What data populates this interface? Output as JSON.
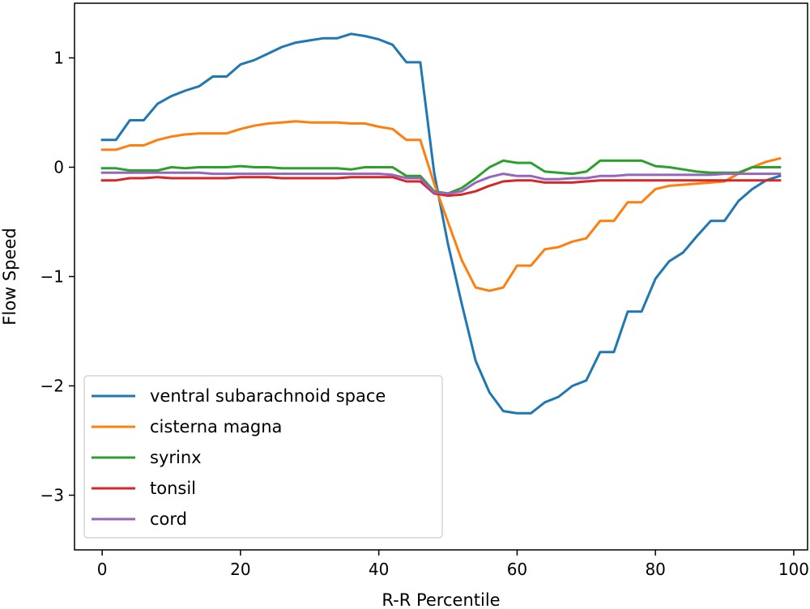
{
  "chart_data": {
    "type": "line",
    "title": "",
    "xlabel": "R-R Percentile",
    "ylabel": "Flow Speed",
    "xlim": [
      -4,
      102
    ],
    "ylim": [
      -3.5,
      1.5
    ],
    "xticks": [
      0,
      20,
      40,
      60,
      80,
      100
    ],
    "yticks": [
      1,
      0,
      -1,
      -2,
      -3
    ],
    "xtick_labels": [
      "0",
      "20",
      "40",
      "60",
      "80",
      "100"
    ],
    "ytick_labels": [
      "1",
      "0",
      "−1",
      "−2",
      "−3"
    ],
    "grid": false,
    "legend_position": "lower-left",
    "x": [
      0,
      2,
      4,
      6,
      8,
      10,
      12,
      14,
      16,
      18,
      20,
      22,
      24,
      26,
      28,
      30,
      32,
      34,
      36,
      38,
      40,
      42,
      44,
      46,
      48,
      50,
      52,
      54,
      56,
      58,
      60,
      62,
      64,
      66,
      68,
      70,
      72,
      74,
      76,
      78,
      80,
      82,
      84,
      86,
      88,
      90,
      92,
      94,
      96,
      98
    ],
    "series": [
      {
        "name": "ventral subarachnoid space",
        "color": "#1f77b4",
        "values": [
          0.25,
          0.25,
          0.43,
          0.43,
          0.58,
          0.65,
          0.7,
          0.74,
          0.83,
          0.83,
          0.94,
          0.98,
          1.04,
          1.1,
          1.14,
          1.16,
          1.18,
          1.18,
          1.22,
          1.2,
          1.17,
          1.12,
          0.96,
          0.96,
          -0.05,
          -0.7,
          -1.25,
          -1.77,
          -2.06,
          -2.23,
          -2.25,
          -2.25,
          -2.15,
          -2.1,
          -2.0,
          -1.95,
          -1.69,
          -1.69,
          -1.32,
          -1.32,
          -1.02,
          -0.86,
          -0.78,
          -0.63,
          -0.49,
          -0.49,
          -0.31,
          -0.2,
          -0.12,
          -0.08
        ]
      },
      {
        "name": "cisterna magna",
        "color": "#ff7f0e",
        "values": [
          0.16,
          0.16,
          0.2,
          0.2,
          0.25,
          0.28,
          0.3,
          0.31,
          0.31,
          0.31,
          0.35,
          0.38,
          0.4,
          0.41,
          0.42,
          0.41,
          0.41,
          0.41,
          0.4,
          0.4,
          0.37,
          0.35,
          0.25,
          0.25,
          -0.15,
          -0.5,
          -0.85,
          -1.1,
          -1.13,
          -1.1,
          -0.9,
          -0.9,
          -0.75,
          -0.73,
          -0.68,
          -0.65,
          -0.49,
          -0.49,
          -0.32,
          -0.32,
          -0.2,
          -0.17,
          -0.16,
          -0.15,
          -0.14,
          -0.13,
          -0.06,
          0.0,
          0.05,
          0.08
        ]
      },
      {
        "name": "syrinx",
        "color": "#2ca02c",
        "values": [
          -0.01,
          -0.01,
          -0.03,
          -0.03,
          -0.03,
          0.0,
          -0.01,
          0.0,
          0.0,
          0.0,
          0.01,
          0.0,
          0.0,
          -0.01,
          -0.01,
          -0.01,
          -0.01,
          -0.01,
          -0.02,
          0.0,
          0.0,
          0.0,
          -0.08,
          -0.08,
          -0.22,
          -0.24,
          -0.19,
          -0.1,
          0.0,
          0.06,
          0.04,
          0.04,
          -0.04,
          -0.05,
          -0.06,
          -0.04,
          0.06,
          0.06,
          0.06,
          0.06,
          0.01,
          0.0,
          -0.02,
          -0.04,
          -0.05,
          -0.05,
          -0.05,
          0.0,
          0.0,
          0.0
        ]
      },
      {
        "name": "tonsil",
        "color": "#d62728",
        "values": [
          -0.12,
          -0.12,
          -0.1,
          -0.1,
          -0.09,
          -0.1,
          -0.1,
          -0.1,
          -0.1,
          -0.1,
          -0.09,
          -0.09,
          -0.09,
          -0.1,
          -0.1,
          -0.1,
          -0.1,
          -0.1,
          -0.09,
          -0.09,
          -0.09,
          -0.09,
          -0.13,
          -0.13,
          -0.24,
          -0.26,
          -0.25,
          -0.22,
          -0.17,
          -0.13,
          -0.12,
          -0.12,
          -0.14,
          -0.14,
          -0.14,
          -0.13,
          -0.12,
          -0.12,
          -0.12,
          -0.12,
          -0.12,
          -0.12,
          -0.12,
          -0.12,
          -0.12,
          -0.12,
          -0.12,
          -0.12,
          -0.12,
          -0.12
        ]
      },
      {
        "name": "cord",
        "color": "#9467bd",
        "values": [
          -0.05,
          -0.05,
          -0.05,
          -0.05,
          -0.05,
          -0.05,
          -0.05,
          -0.05,
          -0.06,
          -0.06,
          -0.06,
          -0.06,
          -0.06,
          -0.06,
          -0.06,
          -0.06,
          -0.06,
          -0.06,
          -0.06,
          -0.06,
          -0.06,
          -0.07,
          -0.1,
          -0.1,
          -0.23,
          -0.24,
          -0.22,
          -0.14,
          -0.09,
          -0.06,
          -0.08,
          -0.08,
          -0.11,
          -0.11,
          -0.1,
          -0.1,
          -0.08,
          -0.08,
          -0.07,
          -0.07,
          -0.07,
          -0.07,
          -0.07,
          -0.07,
          -0.07,
          -0.06,
          -0.06,
          -0.06,
          -0.06,
          -0.06
        ]
      }
    ]
  }
}
